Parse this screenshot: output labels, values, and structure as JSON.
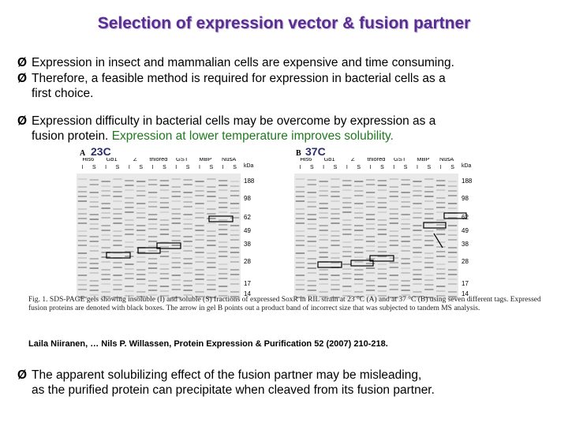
{
  "title": "Selection of expression vector & fusion partner",
  "bullets": [
    {
      "line1": "Expression in insect and mammalian cells are expensive and time consuming."
    },
    {
      "line1": "Therefore, a feasible method is required for expression in bacterial cells as a",
      "line2": "first choice."
    },
    {
      "line1": "Expression difficulty in bacterial cells may be overcome by expression as a",
      "line2a": "fusion protein.",
      "line2b": "Expression at lower temperature improves solubility."
    },
    {
      "line1": "The apparent solubilizing effect of the fusion partner may be misleading,",
      "line2": "as the purified protein can precipitate when cleaved from its fusion partner."
    }
  ],
  "figure": {
    "panel_a": {
      "letter": "A",
      "temp": "23C"
    },
    "panel_b": {
      "letter": "B",
      "temp": "37C"
    },
    "partners": [
      "His6",
      "Gb1",
      "Z",
      "thiored",
      "GST",
      "MBP",
      "NusA"
    ],
    "lane_labels": [
      "I",
      "S"
    ],
    "kda_label": "kDa",
    "markers": [
      "188",
      "98",
      "62",
      "49",
      "38",
      "28",
      "17",
      "14"
    ],
    "caption": "Fig. 1. SDS-PAGE gels showing insoluble (I) and soluble (S) fractions of expressed SoxR in RIL strain at 23 °C (A) and at 37 °C (B) using seven different tags. Expressed fusion proteins are denoted with black boxes. The arrow in gel B points out a product band of incorrect size that was subjected to tandem MS analysis."
  },
  "reference": "Laila Niiranen, … Nils P. Willassen, Protein Expression & Purification 52 (2007) 210-218."
}
